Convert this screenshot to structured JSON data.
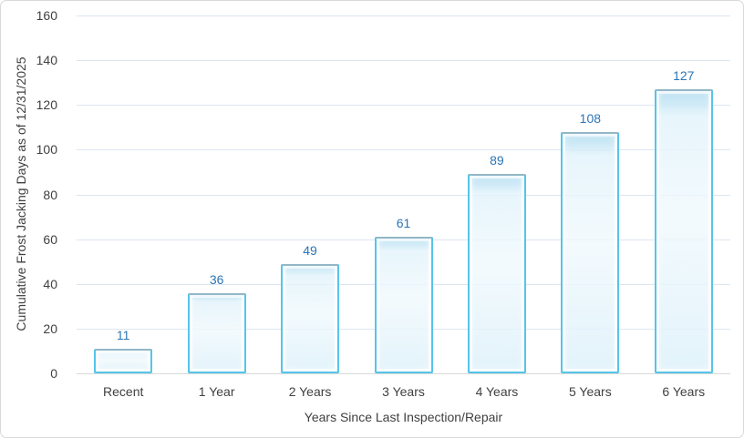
{
  "chart_data": {
    "type": "bar",
    "categories": [
      "Recent",
      "1 Year",
      "2 Years",
      "3 Years",
      "4 Years",
      "5 Years",
      "6 Years"
    ],
    "values": [
      11,
      36,
      49,
      61,
      89,
      108,
      127
    ],
    "title": "",
    "xlabel": "Years Since Last Inspection/Repair",
    "ylabel": "Cumulative Frost Jacking Days as of 12/31/2025",
    "ylim": [
      0,
      160
    ],
    "ytick_interval": 20,
    "ytick_labels": [
      "0",
      "20",
      "40",
      "60",
      "80",
      "100",
      "120",
      "140",
      "160"
    ],
    "grid": true,
    "legend": false,
    "data_labels_shown": true,
    "colors": {
      "background": "#ffffff",
      "chart_border": "#d9d9d9",
      "gridline": "#dce6f1",
      "axis_line": "#d9d9d9",
      "axis_text": "#404040",
      "bar_fill": "#e8f5fc",
      "bar_border": "#55c5e9",
      "data_label": "#2e75b6"
    }
  }
}
